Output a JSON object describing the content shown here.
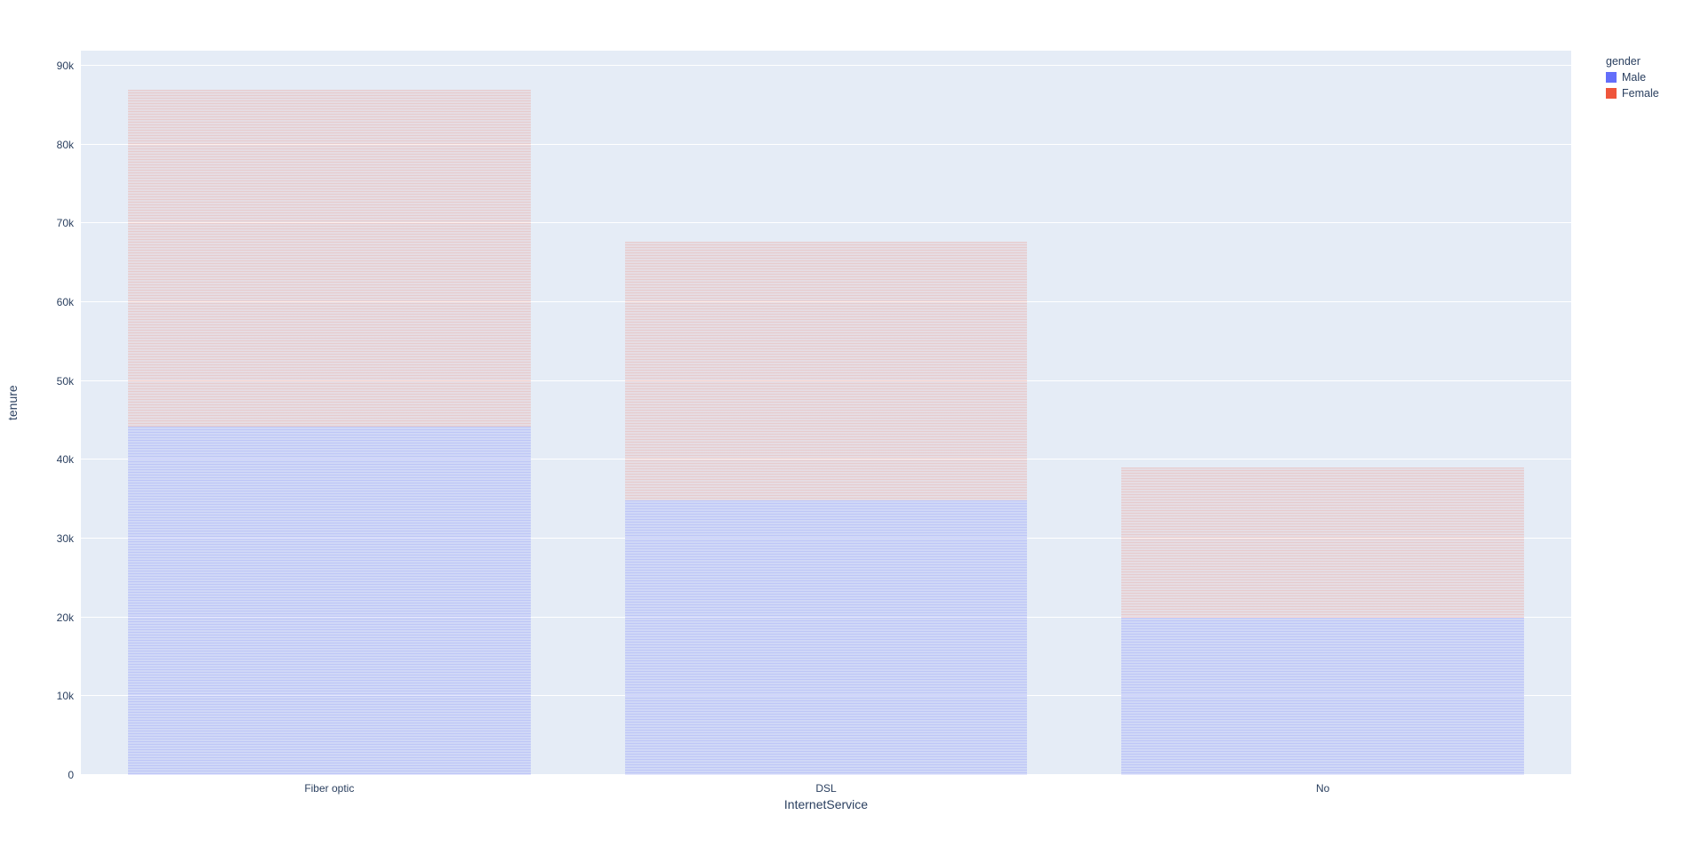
{
  "chart_data": {
    "type": "bar",
    "mode": "stacked",
    "title": "",
    "xlabel": "InternetService",
    "ylabel": "tenure",
    "legend_title": "gender",
    "categories": [
      "Fiber optic",
      "DSL",
      "No"
    ],
    "series": [
      {
        "name": "Male",
        "color": "#636efa",
        "values": [
          44200,
          34900,
          20000
        ]
      },
      {
        "name": "Female",
        "color": "#ef553b",
        "values": [
          42800,
          32800,
          19000
        ]
      }
    ],
    "totals": [
      87000,
      67700,
      39000
    ],
    "ylim": [
      0,
      90000
    ],
    "yticks": [
      "0",
      "10k",
      "20k",
      "30k",
      "40k",
      "50k",
      "60k",
      "70k",
      "80k",
      "90k"
    ],
    "grid": true,
    "legend_position": "top-right",
    "plot_bgcolor": "#e5ecf6",
    "paper_bgcolor": "#ffffff",
    "bar_width_fraction": 0.81
  }
}
